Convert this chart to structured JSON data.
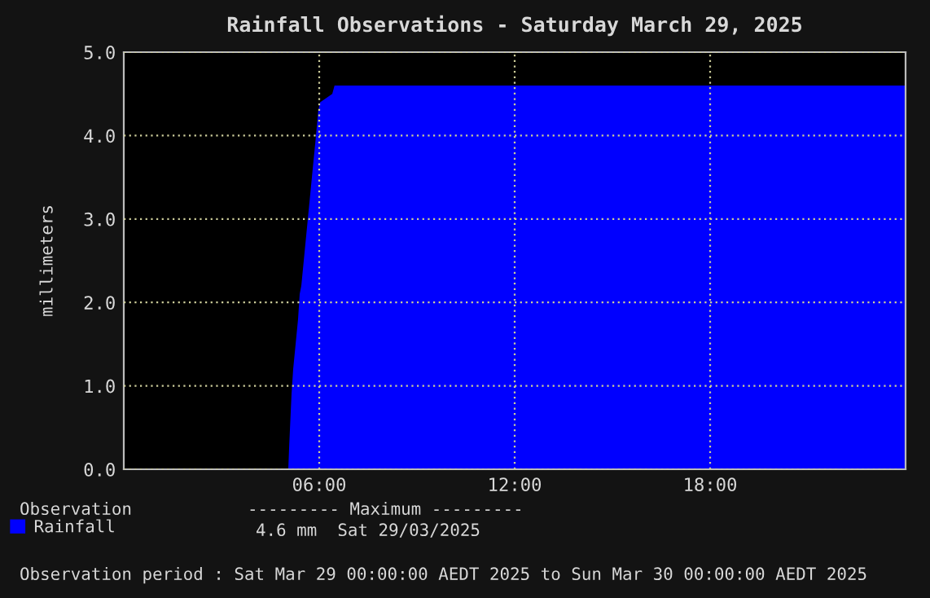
{
  "chart_data": {
    "type": "area",
    "title": "Rainfall Observations - Saturday March 29, 2025",
    "ylabel": "millimeters",
    "x": [
      0,
      5.05,
      5.08,
      5.15,
      5.2,
      5.25,
      5.3,
      5.35,
      5.4,
      5.45,
      5.5,
      5.55,
      5.6,
      5.65,
      5.7,
      5.75,
      5.8,
      5.85,
      5.9,
      5.97,
      6.03,
      6.4,
      6.47,
      24
    ],
    "series": [
      {
        "name": "Rainfall",
        "color": "#0000ff",
        "values": [
          0,
          0,
          0.3,
          0.9,
          1.2,
          1.4,
          1.6,
          1.8,
          2.1,
          2.2,
          2.4,
          2.6,
          2.8,
          3.0,
          3.2,
          3.4,
          3.6,
          3.8,
          4.0,
          4.3,
          4.4,
          4.5,
          4.6,
          4.6
        ]
      }
    ],
    "xlim": [
      0,
      24
    ],
    "xticks": [
      {
        "value": 6,
        "label": "06:00"
      },
      {
        "value": 12,
        "label": "12:00"
      },
      {
        "value": 18,
        "label": "18:00"
      }
    ],
    "ylim": [
      0,
      5.0
    ],
    "yticks": [
      {
        "value": 0,
        "label": "0.0"
      },
      {
        "value": 1,
        "label": "1.0"
      },
      {
        "value": 2,
        "label": "2.0"
      },
      {
        "value": 3,
        "label": "3.0"
      },
      {
        "value": 4,
        "label": "4.0"
      },
      {
        "value": 5,
        "label": "5.0"
      }
    ],
    "grid": true,
    "legend": "bottom left",
    "annotations": [
      "Observation",
      "--------- Maximum ---------",
      "4.6 mm  Sat 29/03/2025",
      "Observation period : Sat Mar 29 00:00:00 AEDT 2025 to Sun Mar 30 00:00:00 AEDT 2025"
    ]
  }
}
